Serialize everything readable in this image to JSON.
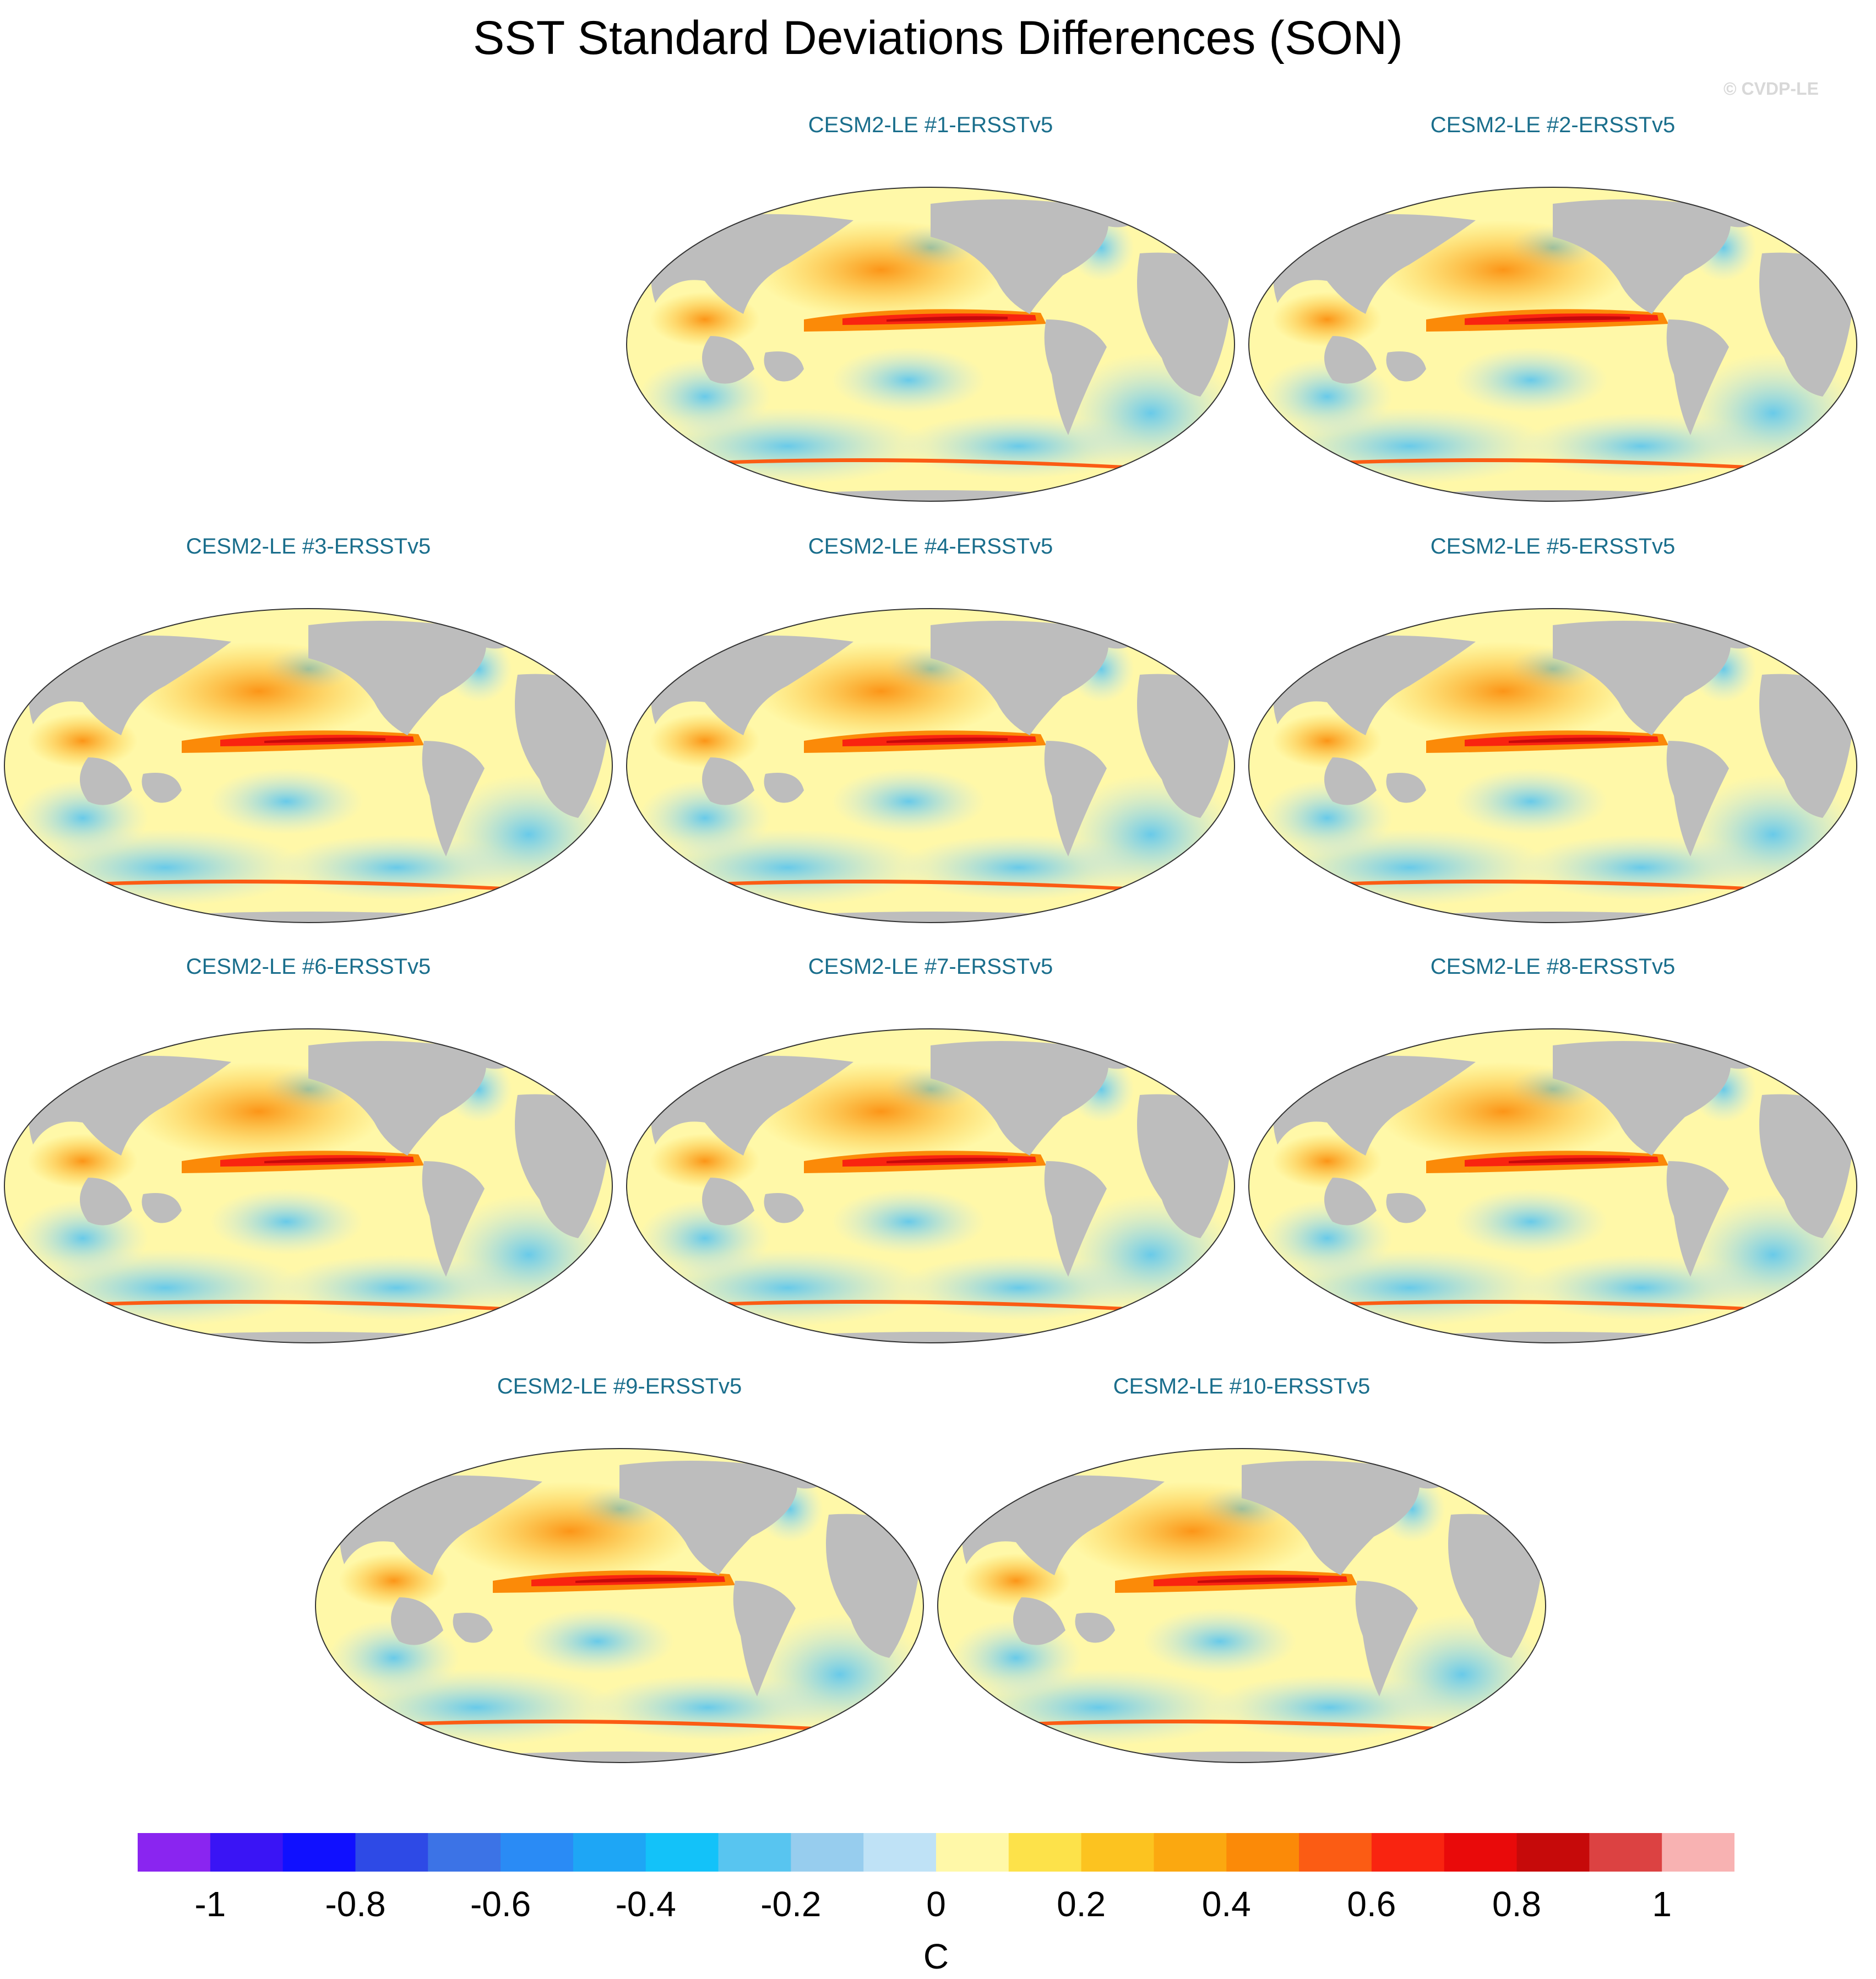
{
  "title": "SST Standard Deviations Differences (SON)",
  "copyright": "© CVDP-LE",
  "panels": [
    {
      "label": "CESM2-LE #1-ERSSTv5"
    },
    {
      "label": "CESM2-LE #2-ERSSTv5"
    },
    {
      "label": "CESM2-LE #3-ERSSTv5"
    },
    {
      "label": "CESM2-LE #4-ERSSTv5"
    },
    {
      "label": "CESM2-LE #5-ERSSTv5"
    },
    {
      "label": "CESM2-LE #6-ERSSTv5"
    },
    {
      "label": "CESM2-LE #7-ERSSTv5"
    },
    {
      "label": "CESM2-LE #8-ERSSTv5"
    },
    {
      "label": "CESM2-LE #9-ERSSTv5"
    },
    {
      "label": "CESM2-LE #10-ERSSTv5"
    }
  ],
  "colorbar": {
    "unit": "C",
    "colors": [
      "#8a25f0",
      "#3a14f5",
      "#1010ff",
      "#2e4ae6",
      "#3c73e6",
      "#2a8bf5",
      "#1ea6f5",
      "#13c2f9",
      "#58c5f0",
      "#97cdee",
      "#bfe2f6",
      "#fff8a8",
      "#fde24a",
      "#fcc320",
      "#fba810",
      "#fb8a08",
      "#fb5c14",
      "#f92410",
      "#e90a0a",
      "#c60a0a",
      "#dc4242",
      "#f8b2b2"
    ],
    "tick_labels": [
      "-1",
      "-0.8",
      "-0.6",
      "-0.4",
      "-0.2",
      "0",
      "0.2",
      "0.4",
      "0.6",
      "0.8",
      "1"
    ],
    "tick_values": [
      -1,
      -0.8,
      -0.6,
      -0.4,
      -0.2,
      0,
      0.2,
      0.4,
      0.6,
      0.8,
      1
    ]
  }
}
